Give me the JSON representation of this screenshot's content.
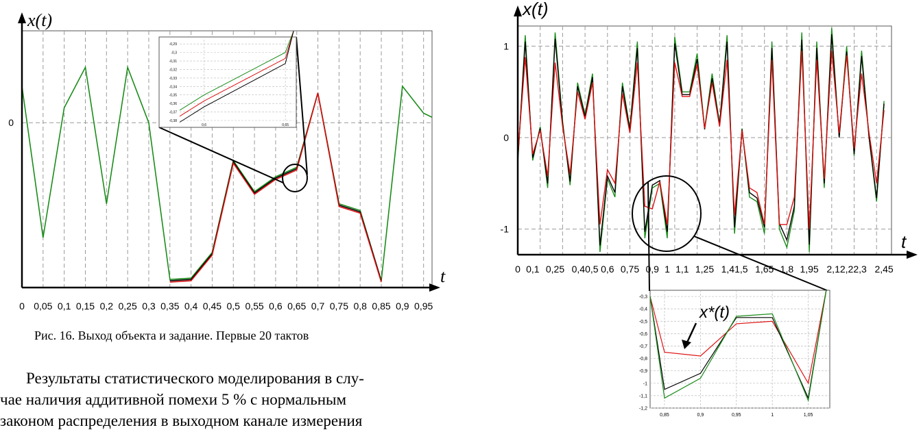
{
  "figure_caption": "Рис. 16. Выход объекта и задание. Первые 20 тактов",
  "paragraph_lines": [
    "Результаты статистического моделирования в слу-",
    "чае наличия аддитивной помехи 5 % с нормальным",
    "законом распределения в выходном канале измерения"
  ],
  "colors": {
    "green": "#1a8c1a",
    "red": "#dd1111",
    "black": "#000000",
    "grid": "#9a9a9a",
    "frame": "#555555"
  },
  "chart_data": [
    {
      "id": "left-main",
      "type": "line",
      "y_axis_label": "x(t)",
      "x_axis_label": "t",
      "x_ticks": [
        "0",
        "0,05",
        "0,1",
        "0,15",
        "0,2",
        "0,25",
        "0,3",
        "0,35",
        "0,4",
        "0,45",
        "0,5",
        "0,55",
        "0,6",
        "0,65",
        "0,7",
        "0,75",
        "0,8",
        "0,85",
        "0,9",
        "0,95"
      ],
      "y_ticks": [
        "0"
      ],
      "xlim": [
        0,
        0.97
      ],
      "ylim": [
        -1.22,
        0.68
      ],
      "grid": true,
      "series": [
        {
          "color": "green",
          "x": [
            0,
            0.05,
            0.1,
            0.15,
            0.2,
            0.25,
            0.3,
            0.35,
            0.4,
            0.45,
            0.5,
            0.55,
            0.6,
            0.65,
            0.7,
            0.75,
            0.8,
            0.85,
            0.9,
            0.95,
            0.97
          ],
          "y": [
            0.27,
            -0.85,
            0.11,
            0.41,
            -0.6,
            0.41,
            0.0,
            -1.16,
            -1.15,
            -0.96,
            -0.28,
            -0.51,
            -0.4,
            -0.33,
            0.22,
            -0.6,
            -0.65,
            -1.17,
            0.27,
            0.07,
            0.04
          ]
        },
        {
          "color": "black",
          "x": [
            0.35,
            0.4,
            0.45,
            0.5,
            0.55,
            0.6,
            0.65,
            0.7,
            0.75,
            0.8,
            0.85
          ],
          "y": [
            -1.17,
            -1.16,
            -0.97,
            -0.29,
            -0.52,
            -0.41,
            -0.34,
            0.22,
            -0.61,
            -0.66,
            -1.17
          ]
        },
        {
          "color": "red",
          "x": [
            0.35,
            0.4,
            0.45,
            0.5,
            0.55,
            0.6,
            0.65,
            0.7,
            0.75,
            0.8,
            0.85
          ],
          "y": [
            -1.18,
            -1.17,
            -0.98,
            -0.3,
            -0.53,
            -0.42,
            -0.35,
            0.22,
            -0.62,
            -0.67,
            -1.18
          ]
        }
      ]
    },
    {
      "id": "left-inset",
      "type": "line",
      "x_ticks": [
        "0,6",
        "0,65"
      ],
      "y_ticks": [
        "-0,29",
        "-0,3",
        "-0,31",
        "-0,32",
        "-0,33",
        "-0,34",
        "-0,35",
        "-0,36",
        "-0,37",
        "-0,38"
      ],
      "xlim": [
        0.585,
        0.655
      ],
      "ylim": [
        -0.38,
        -0.285
      ],
      "grid": true,
      "series": [
        {
          "color": "green",
          "x": [
            0.585,
            0.6,
            0.65,
            0.655
          ],
          "y": [
            -0.368,
            -0.35,
            -0.3,
            -0.275
          ]
        },
        {
          "color": "red",
          "x": [
            0.585,
            0.6,
            0.65,
            0.655
          ],
          "y": [
            -0.375,
            -0.357,
            -0.307,
            -0.275
          ]
        },
        {
          "color": "black",
          "x": [
            0.585,
            0.6,
            0.65,
            0.655
          ],
          "y": [
            -0.382,
            -0.364,
            -0.313,
            -0.275
          ]
        }
      ]
    },
    {
      "id": "right-main",
      "type": "line",
      "y_axis_label": "x(t)",
      "x_axis_label": "t",
      "x_ticks": [
        "0",
        "0,1",
        "0,25",
        "0,40,5",
        "0,6",
        "0,75",
        "0,9",
        "1",
        "1,1",
        "1,25",
        "1,41,5",
        "1,65",
        "1,8",
        "1,95",
        "2,12,22,3",
        "2,45"
      ],
      "y_ticks": [
        "1",
        "0",
        "-1"
      ],
      "xlim": [
        0,
        2.5
      ],
      "ylim": [
        -1.28,
        1.22
      ],
      "grid": true,
      "series": [
        {
          "color": "green",
          "x": [
            0,
            0.05,
            0.1,
            0.15,
            0.2,
            0.25,
            0.3,
            0.35,
            0.4,
            0.45,
            0.5,
            0.55,
            0.6,
            0.65,
            0.7,
            0.75,
            0.8,
            0.85,
            0.9,
            0.95,
            1.0,
            1.05,
            1.1,
            1.15,
            1.2,
            1.25,
            1.3,
            1.35,
            1.4,
            1.45,
            1.5,
            1.55,
            1.6,
            1.65,
            1.7,
            1.75,
            1.8,
            1.85,
            1.9,
            1.95,
            2.0,
            2.05,
            2.1,
            2.15,
            2.2,
            2.25,
            2.3,
            2.35,
            2.4,
            2.45
          ],
          "y": [
            -0.28,
            1.12,
            -0.25,
            0.12,
            -0.55,
            1.15,
            0.18,
            -0.52,
            0.6,
            0.25,
            0.7,
            -1.25,
            -0.45,
            -0.65,
            0.6,
            0.1,
            1.05,
            -1.1,
            -0.55,
            -0.5,
            -1.1,
            1.1,
            0.5,
            0.5,
            0.92,
            0.1,
            0.7,
            0.15,
            1.12,
            -1.05,
            0.1,
            -0.65,
            -0.7,
            -1.05,
            1.05,
            -1.0,
            -1.2,
            -0.8,
            1.15,
            -1.25,
            1.05,
            -0.55,
            1.2,
            0.0,
            1.0,
            -0.2,
            0.95,
            0.0,
            -0.7,
            0.4
          ]
        },
        {
          "color": "black",
          "x": [
            0,
            0.05,
            0.1,
            0.15,
            0.2,
            0.25,
            0.3,
            0.35,
            0.4,
            0.45,
            0.5,
            0.55,
            0.6,
            0.65,
            0.7,
            0.75,
            0.8,
            0.85,
            0.9,
            0.95,
            1.0,
            1.05,
            1.1,
            1.15,
            1.2,
            1.25,
            1.3,
            1.35,
            1.4,
            1.45,
            1.5,
            1.55,
            1.6,
            1.65,
            1.7,
            1.75,
            1.8,
            1.85,
            1.9,
            1.95,
            2.0,
            2.05,
            2.1,
            2.15,
            2.2,
            2.25,
            2.3,
            2.35,
            2.4,
            2.45
          ],
          "y": [
            -0.25,
            1.05,
            -0.22,
            0.1,
            -0.5,
            1.08,
            0.15,
            -0.48,
            0.56,
            0.23,
            0.66,
            -1.18,
            -0.42,
            -0.6,
            0.56,
            0.08,
            0.98,
            -1.03,
            -0.52,
            -0.47,
            -1.03,
            1.03,
            0.47,
            0.47,
            0.86,
            0.09,
            0.65,
            0.14,
            1.05,
            -0.98,
            0.09,
            -0.6,
            -0.66,
            -0.98,
            0.98,
            -0.94,
            -1.12,
            -0.75,
            1.07,
            -1.17,
            0.98,
            -0.5,
            1.13,
            0.0,
            0.94,
            -0.18,
            0.89,
            0.0,
            -0.66,
            0.37
          ]
        },
        {
          "color": "red",
          "x": [
            0,
            0.05,
            0.1,
            0.15,
            0.2,
            0.25,
            0.3,
            0.35,
            0.4,
            0.45,
            0.5,
            0.55,
            0.6,
            0.65,
            0.7,
            0.75,
            0.8,
            0.85,
            0.9,
            0.95,
            1.0,
            1.05,
            1.1,
            1.15,
            1.2,
            1.25,
            1.3,
            1.35,
            1.4,
            1.45,
            1.5,
            1.55,
            1.6,
            1.65,
            1.7,
            1.75,
            1.8,
            1.85,
            1.9,
            1.95,
            2.0,
            2.05,
            2.1,
            2.15,
            2.2,
            2.25,
            2.3,
            2.35,
            2.4,
            2.45
          ],
          "y": [
            -0.2,
            0.88,
            -0.18,
            0.08,
            -0.42,
            0.82,
            0.12,
            -0.4,
            0.5,
            0.2,
            0.6,
            -0.95,
            -0.35,
            -0.5,
            0.48,
            0.05,
            0.82,
            -0.75,
            -0.78,
            -0.48,
            -0.95,
            0.82,
            0.45,
            0.45,
            0.8,
            0.1,
            0.6,
            0.12,
            0.85,
            -0.85,
            0.08,
            -0.55,
            -0.6,
            -0.95,
            0.85,
            -0.95,
            -0.95,
            -0.65,
            0.95,
            -1.0,
            0.85,
            -0.45,
            0.95,
            0.05,
            0.9,
            -0.12,
            0.7,
            0.05,
            -0.5,
            0.3
          ]
        }
      ]
    },
    {
      "id": "right-inset",
      "type": "line",
      "annotation": "x*(t)",
      "x_ticks": [
        "0,85",
        "0,9",
        "0,95",
        "1",
        "1,05"
      ],
      "y_ticks": [
        "-0,3",
        "-0,4",
        "-0,5",
        "-0,6",
        "-0,7",
        "-0,8",
        "-0,9",
        "-1",
        "-1,1",
        "-1,2"
      ],
      "xlim": [
        0.83,
        1.08
      ],
      "ylim": [
        -1.2,
        -0.25
      ],
      "grid": true,
      "series": [
        {
          "color": "red",
          "x": [
            0.83,
            0.85,
            0.9,
            0.95,
            1.0,
            1.05,
            1.075
          ],
          "y": [
            -0.3,
            -0.75,
            -0.78,
            -0.52,
            -0.5,
            -1.0,
            -0.25
          ]
        },
        {
          "color": "black",
          "x": [
            0.83,
            0.85,
            0.9,
            0.95,
            1.0,
            1.05,
            1.075
          ],
          "y": [
            -0.3,
            -1.05,
            -0.92,
            -0.47,
            -0.47,
            -1.12,
            -0.25
          ]
        },
        {
          "color": "green",
          "x": [
            0.83,
            0.85,
            0.9,
            0.95,
            1.0,
            1.05,
            1.075
          ],
          "y": [
            -0.3,
            -1.12,
            -0.96,
            -0.46,
            -0.44,
            -1.14,
            -0.25
          ]
        }
      ]
    }
  ]
}
